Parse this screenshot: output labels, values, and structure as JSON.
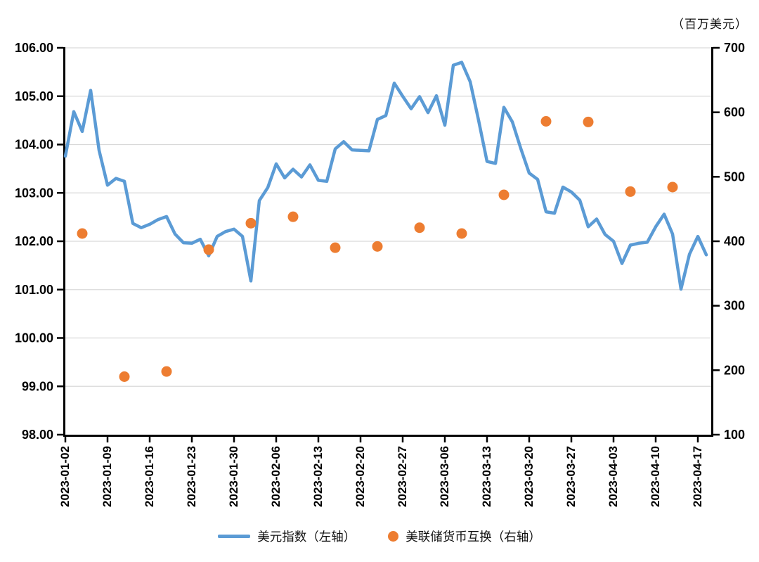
{
  "unit_label": "（百万美元）",
  "legend": {
    "items": [
      {
        "label": "美元指数（左轴）",
        "marker": "line",
        "color": "#5B9BD5"
      },
      {
        "label": "美联储货币互换（右轴）",
        "marker": "dot",
        "color": "#ED7D31"
      }
    ]
  },
  "colors": {
    "line": "#5B9BD5",
    "dot": "#ED7D31",
    "grid": "#D9D9D9",
    "axis": "#000000",
    "background": "#FFFFFF"
  },
  "chart_data": {
    "type": "line",
    "title": "",
    "grid": "horizontal-on",
    "legend_position": "bottom",
    "left_axis": {
      "min": 98,
      "max": 106,
      "step": 1,
      "tick_labels": [
        "106.00",
        "105.00",
        "104.00",
        "103.00",
        "102.00",
        "101.00",
        "100.00",
        "99.00",
        "98.00"
      ]
    },
    "right_axis": {
      "min": 100,
      "max": 700,
      "step": 100,
      "unit": "百万美元",
      "tick_labels": [
        "700",
        "600",
        "500",
        "400",
        "300",
        "200",
        "100"
      ]
    },
    "x_tick_labels": [
      "2023-01-02",
      "2023-01-09",
      "2023-01-16",
      "2023-01-23",
      "2023-01-30",
      "2023-02-06",
      "2023-02-13",
      "2023-02-20",
      "2023-02-27",
      "2023-03-06",
      "2023-03-13",
      "2023-03-20",
      "2023-03-27",
      "2023-04-03",
      "2023-04-10",
      "2023-04-17"
    ],
    "x_dates": [
      "2023-01-02",
      "2023-01-03",
      "2023-01-04",
      "2023-01-05",
      "2023-01-06",
      "2023-01-09",
      "2023-01-10",
      "2023-01-11",
      "2023-01-12",
      "2023-01-13",
      "2023-01-16",
      "2023-01-17",
      "2023-01-18",
      "2023-01-19",
      "2023-01-20",
      "2023-01-23",
      "2023-01-24",
      "2023-01-25",
      "2023-01-26",
      "2023-01-27",
      "2023-01-30",
      "2023-01-31",
      "2023-02-01",
      "2023-02-02",
      "2023-02-03",
      "2023-02-06",
      "2023-02-07",
      "2023-02-08",
      "2023-02-09",
      "2023-02-10",
      "2023-02-13",
      "2023-02-14",
      "2023-02-15",
      "2023-02-16",
      "2023-02-17",
      "2023-02-20",
      "2023-02-21",
      "2023-02-22",
      "2023-02-23",
      "2023-02-24",
      "2023-02-27",
      "2023-02-28",
      "2023-03-01",
      "2023-03-02",
      "2023-03-03",
      "2023-03-06",
      "2023-03-07",
      "2023-03-08",
      "2023-03-09",
      "2023-03-10",
      "2023-03-13",
      "2023-03-14",
      "2023-03-15",
      "2023-03-16",
      "2023-03-17",
      "2023-03-20",
      "2023-03-21",
      "2023-03-22",
      "2023-03-23",
      "2023-03-24",
      "2023-03-27",
      "2023-03-28",
      "2023-03-29",
      "2023-03-30",
      "2023-03-31",
      "2023-04-03",
      "2023-04-04",
      "2023-04-05",
      "2023-04-06",
      "2023-04-07",
      "2023-04-10",
      "2023-04-11",
      "2023-04-12",
      "2023-04-13",
      "2023-04-14",
      "2023-04-17",
      "2023-04-18"
    ],
    "series": [
      {
        "name": "美元指数（左轴）",
        "type": "line",
        "axis": "left",
        "color": "#5B9BD5",
        "values": [
          103.76,
          104.68,
          104.27,
          105.12,
          103.88,
          103.16,
          103.3,
          103.24,
          102.37,
          102.28,
          102.35,
          102.45,
          102.51,
          102.15,
          101.97,
          101.96,
          102.04,
          101.7,
          102.1,
          102.2,
          102.25,
          102.1,
          101.18,
          102.84,
          103.11,
          103.6,
          103.31,
          103.49,
          103.33,
          103.58,
          103.26,
          103.24,
          103.91,
          104.06,
          103.89,
          103.88,
          103.87,
          104.52,
          104.6,
          105.27,
          105.0,
          104.74,
          104.99,
          104.66,
          105.01,
          104.4,
          105.64,
          105.7,
          105.3,
          104.5,
          103.65,
          103.61,
          104.77,
          104.47,
          103.92,
          103.41,
          103.28,
          102.61,
          102.58,
          103.12,
          103.02,
          102.85,
          102.3,
          102.46,
          102.14,
          102.0,
          101.54,
          101.92,
          101.96,
          101.98,
          102.3,
          102.56,
          102.15,
          101.01,
          101.73,
          102.1,
          101.72
        ]
      },
      {
        "name": "美联储货币互换（右轴）",
        "type": "scatter",
        "axis": "right",
        "color": "#ED7D31",
        "points": [
          {
            "date": "2023-01-04",
            "value": 412
          },
          {
            "date": "2023-01-11",
            "value": 190
          },
          {
            "date": "2023-01-18",
            "value": 198
          },
          {
            "date": "2023-01-25",
            "value": 387
          },
          {
            "date": "2023-02-01",
            "value": 428
          },
          {
            "date": "2023-02-08",
            "value": 438
          },
          {
            "date": "2023-02-15",
            "value": 390
          },
          {
            "date": "2023-02-22",
            "value": 392
          },
          {
            "date": "2023-03-01",
            "value": 421
          },
          {
            "date": "2023-03-08",
            "value": 412
          },
          {
            "date": "2023-03-15",
            "value": 472
          },
          {
            "date": "2023-03-22",
            "value": 586
          },
          {
            "date": "2023-03-29",
            "value": 585
          },
          {
            "date": "2023-04-05",
            "value": 477
          },
          {
            "date": "2023-04-12",
            "value": 484
          }
        ]
      }
    ]
  }
}
